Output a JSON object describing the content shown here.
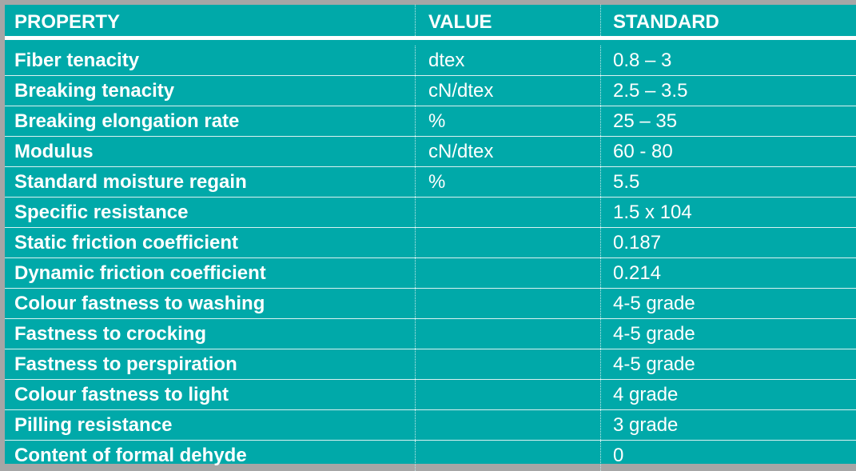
{
  "table": {
    "headers": [
      "PROPERTY",
      "VALUE",
      "STANDARD"
    ],
    "rows": [
      {
        "property": "Fiber tenacity",
        "value": "dtex",
        "standard": "0.8 – 3"
      },
      {
        "property": "Breaking tenacity",
        "value": "cN/dtex",
        "standard": "2.5 – 3.5"
      },
      {
        "property": "Breaking elongation rate",
        "value": "%",
        "standard": "25 – 35"
      },
      {
        "property": "Modulus",
        "value": "cN/dtex",
        "standard": "60 - 80"
      },
      {
        "property": "Standard moisture regain",
        "value": "%",
        "standard": "5.5"
      },
      {
        "property": "Specific resistance",
        "value": "",
        "standard": "1.5 x 104"
      },
      {
        "property": "Static friction coefficient",
        "value": "",
        "standard": "0.187"
      },
      {
        "property": "Dynamic friction coefficient",
        "value": "",
        "standard": "0.214"
      },
      {
        "property": "Colour fastness to washing",
        "value": "",
        "standard": "4-5 grade"
      },
      {
        "property": "Fastness to crocking",
        "value": "",
        "standard": "4-5 grade"
      },
      {
        "property": "Fastness to perspiration",
        "value": "",
        "standard": "4-5 grade"
      },
      {
        "property": "Colour fastness to light",
        "value": "",
        "standard": "4 grade"
      },
      {
        "property": "Pilling resistance",
        "value": "",
        "standard": "3 grade"
      },
      {
        "property": "Content of formal dehyde",
        "value": "",
        "standard": "0"
      }
    ]
  },
  "colors": {
    "table_background": "#00a9a9",
    "text": "#ffffff",
    "frame": "#a6a6a6"
  }
}
